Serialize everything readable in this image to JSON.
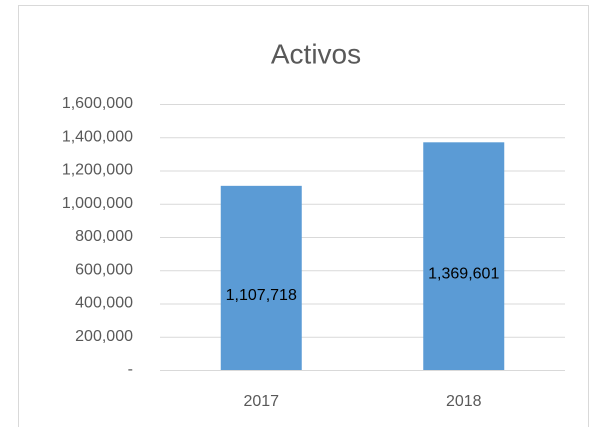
{
  "chart_data": {
    "type": "bar",
    "title": "Activos",
    "categories": [
      "2017",
      "2018"
    ],
    "values": [
      1107718,
      1369601
    ],
    "value_labels": [
      "1,107,718",
      "1,369,601"
    ],
    "color": "#5b9bd5",
    "ylim": [
      0,
      1600000
    ],
    "yticks": [
      {
        "value": 0,
        "label": "-"
      },
      {
        "value": 200000,
        "label": "200,000"
      },
      {
        "value": 400000,
        "label": "400,000"
      },
      {
        "value": 600000,
        "label": "600,000"
      },
      {
        "value": 800000,
        "label": "800,000"
      },
      {
        "value": 1000000,
        "label": "1,000,000"
      },
      {
        "value": 1200000,
        "label": "1,200,000"
      },
      {
        "value": 1400000,
        "label": "1,400,000"
      },
      {
        "value": 1600000,
        "label": "1,600,000"
      }
    ],
    "grid": true
  }
}
